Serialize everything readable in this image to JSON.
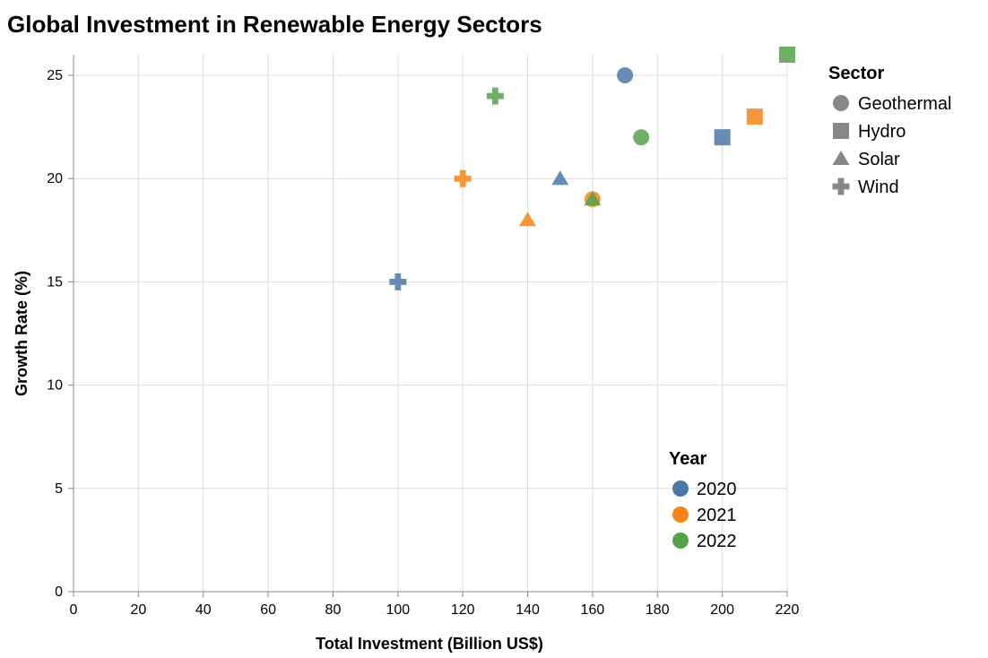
{
  "chart_data": {
    "type": "scatter",
    "title": "Global Investment in Renewable Energy Sectors",
    "xlabel": "Total Investment (Billion US$)",
    "ylabel": "Growth Rate (%)",
    "xlim": [
      0,
      220
    ],
    "ylim": [
      0,
      26
    ],
    "x_ticks": [
      "0",
      "20",
      "40",
      "60",
      "80",
      "100",
      "120",
      "140",
      "160",
      "180",
      "200",
      "220"
    ],
    "y_ticks": [
      "0",
      "5",
      "10",
      "15",
      "20",
      "25"
    ],
    "grid": true,
    "legend_sector": {
      "title": "Sector",
      "items": [
        {
          "label": "Geothermal",
          "shape": "circle"
        },
        {
          "label": "Hydro",
          "shape": "square"
        },
        {
          "label": "Solar",
          "shape": "triangle"
        },
        {
          "label": "Wind",
          "shape": "cross"
        }
      ]
    },
    "legend_year": {
      "title": "Year",
      "items": [
        {
          "label": "2020",
          "color": "#4c78a8"
        },
        {
          "label": "2021",
          "color": "#f58518"
        },
        {
          "label": "2022",
          "color": "#54a24b"
        }
      ]
    },
    "points": [
      {
        "year": "2020",
        "sector": "Geothermal",
        "x": 170,
        "y": 25
      },
      {
        "year": "2020",
        "sector": "Hydro",
        "x": 200,
        "y": 22
      },
      {
        "year": "2020",
        "sector": "Solar",
        "x": 150,
        "y": 20
      },
      {
        "year": "2020",
        "sector": "Wind",
        "x": 100,
        "y": 15
      },
      {
        "year": "2021",
        "sector": "Geothermal",
        "x": 160,
        "y": 19
      },
      {
        "year": "2021",
        "sector": "Hydro",
        "x": 210,
        "y": 23
      },
      {
        "year": "2021",
        "sector": "Solar",
        "x": 140,
        "y": 18
      },
      {
        "year": "2021",
        "sector": "Wind",
        "x": 120,
        "y": 20
      },
      {
        "year": "2022",
        "sector": "Geothermal",
        "x": 175,
        "y": 22
      },
      {
        "year": "2022",
        "sector": "Hydro",
        "x": 220,
        "y": 26
      },
      {
        "year": "2022",
        "sector": "Solar",
        "x": 160,
        "y": 19
      },
      {
        "year": "2022",
        "sector": "Wind",
        "x": 130,
        "y": 24
      }
    ]
  }
}
